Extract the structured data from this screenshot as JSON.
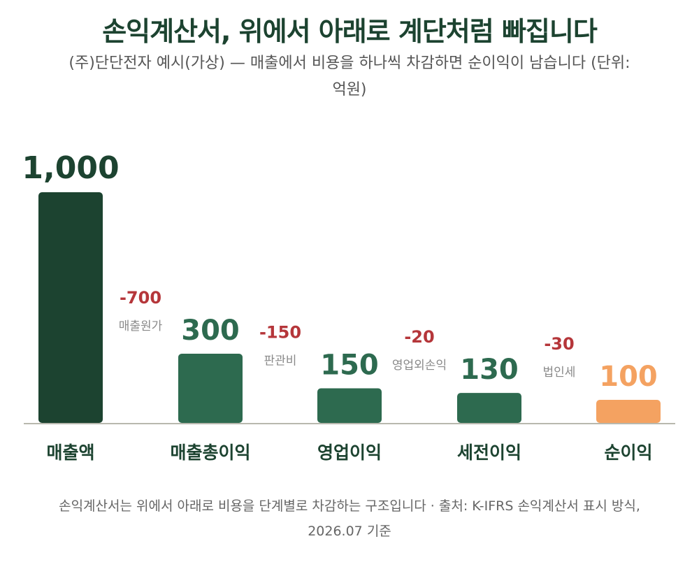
{
  "title": "손익계산서, 위에서 아래로 계단처럼 빠집니다",
  "subtitle": "(주)단단전자 예시(가상) — 매출에서 비용을 하나씩 차감하면 순이익이 남습니다 (단위: 억원)",
  "footer": "손익계산서는 위에서 아래로 비용을 단계별로 차감하는 구조입니다 · 출처: K-IFRS 손익계산서 표시 방식, 2026.07 기준",
  "colors": {
    "revenue": "#1c4330",
    "intermediate": "#2d6a4f",
    "net": "#f4a261",
    "deduction": "#b5363a",
    "deduction_label": "#8a8a8a",
    "axis": "#b8b8ae"
  },
  "chart_data": {
    "type": "bar",
    "categories": [
      "매출액",
      "매출총이익",
      "영업이익",
      "세전이익",
      "순이익"
    ],
    "values": [
      1000,
      300,
      150,
      130,
      100
    ],
    "value_labels": [
      "1,000",
      "300",
      "150",
      "130",
      "100"
    ],
    "deductions": [
      {
        "value": -700,
        "label_text": "-700",
        "name": "매출원가"
      },
      {
        "value": -150,
        "label_text": "-150",
        "name": "판관비"
      },
      {
        "value": -20,
        "label_text": "-20",
        "name": "영업외손익"
      },
      {
        "value": -30,
        "label_text": "-30",
        "name": "법인세"
      }
    ],
    "ylim": [
      0,
      1000
    ],
    "unit": "억원",
    "grid": false,
    "legend": "none"
  }
}
